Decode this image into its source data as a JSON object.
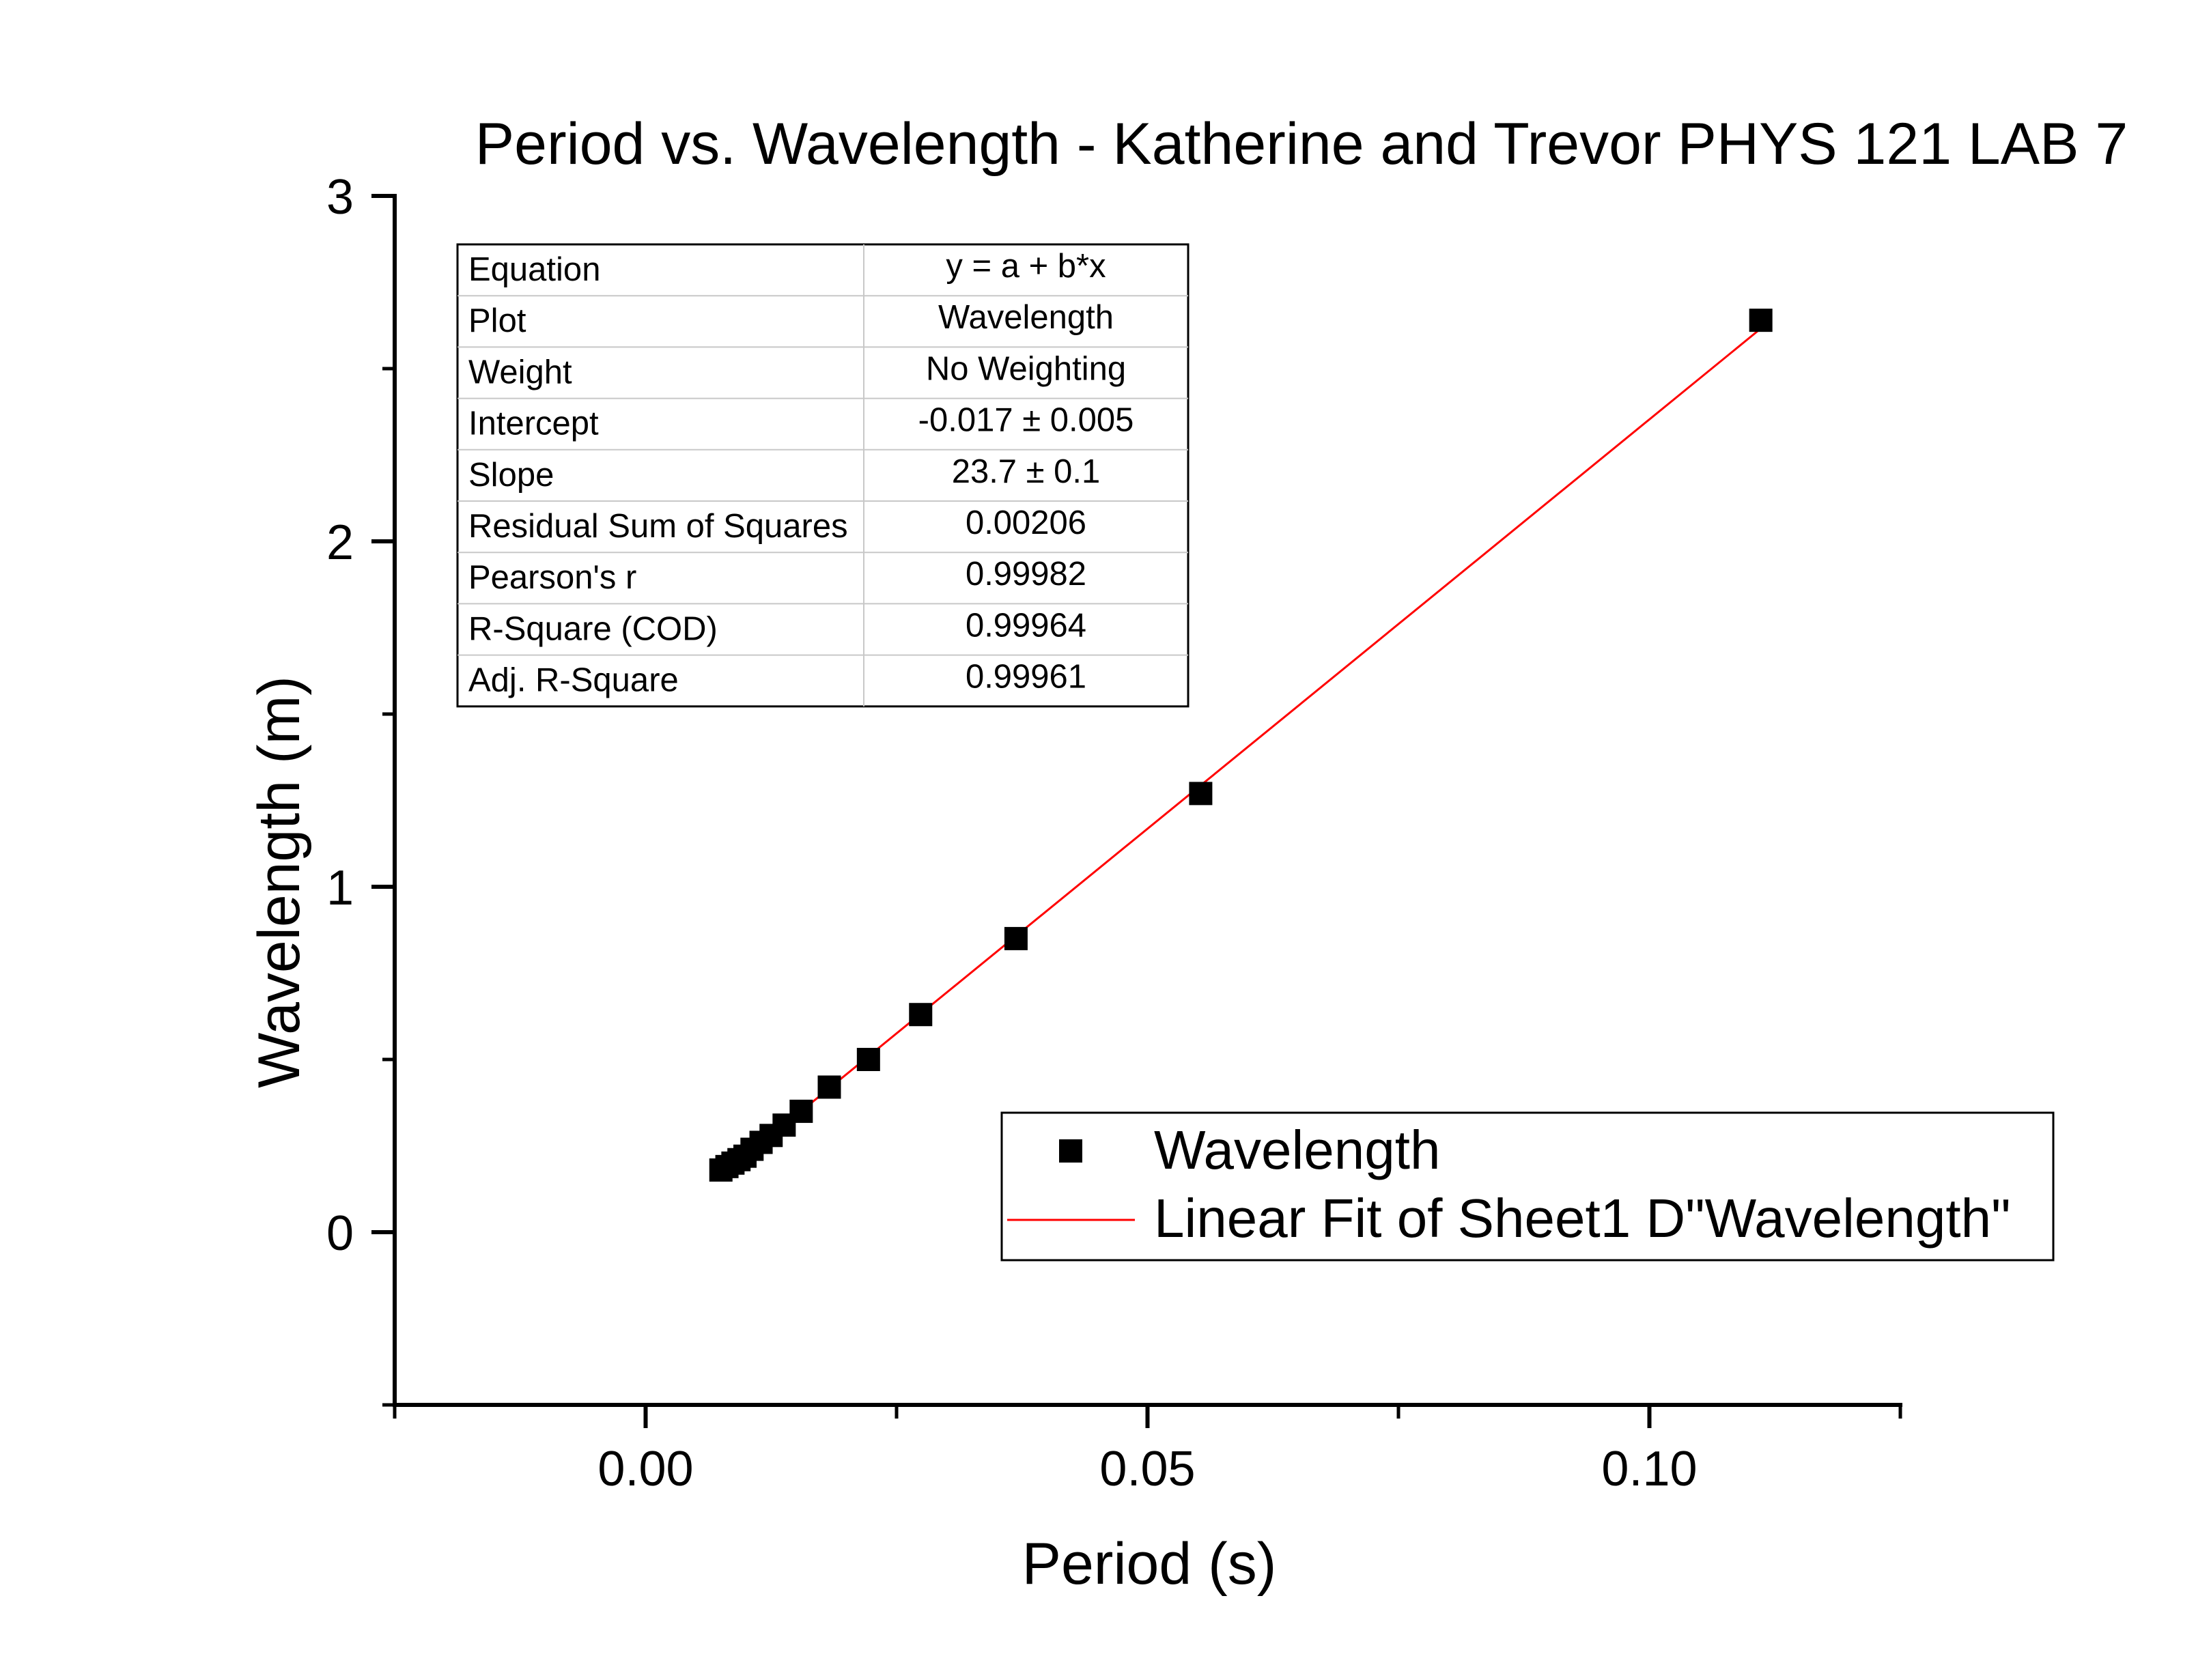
{
  "chart_data": {
    "type": "scatter",
    "title": "Period vs. Wavelength - Katherine and Trevor PHYS 121 LAB 7",
    "xlabel": "Period (s)",
    "ylabel": "Wavelength (m)",
    "xlim": [
      -0.025,
      0.125
    ],
    "ylim": [
      -0.5,
      3
    ],
    "x_ticks": [
      {
        "value": 0.0,
        "label": "0.00"
      },
      {
        "value": 0.05,
        "label": "0.05"
      },
      {
        "value": 0.1,
        "label": "0.10"
      }
    ],
    "x_minor_ticks": [
      -0.025,
      0.025,
      0.075,
      0.125
    ],
    "y_ticks": [
      {
        "value": 0,
        "label": "0"
      },
      {
        "value": 1,
        "label": "1"
      },
      {
        "value": 2,
        "label": "2"
      },
      {
        "value": 3,
        "label": "3"
      }
    ],
    "y_minor_ticks": [
      -0.5,
      0.5,
      1.5,
      2.5
    ],
    "grid": false,
    "series": [
      {
        "name": "Wavelength",
        "kind": "scatter",
        "marker": "square",
        "color": "#000000",
        "x": [
          0.0075,
          0.0081,
          0.0087,
          0.0093,
          0.0099,
          0.0106,
          0.0115,
          0.0125,
          0.0138,
          0.0155,
          0.0183,
          0.0222,
          0.0274,
          0.0369,
          0.0553,
          0.1111
        ],
        "y": [
          0.18,
          0.19,
          0.2,
          0.21,
          0.22,
          0.24,
          0.26,
          0.28,
          0.31,
          0.35,
          0.42,
          0.5,
          0.63,
          0.85,
          1.27,
          2.64
        ]
      },
      {
        "name": "Linear Fit of Sheet1 D\"Wavelength\"",
        "kind": "line",
        "color": "#ff0000",
        "intercept": -0.017,
        "slope": 23.7,
        "x_range": [
          0.0075,
          0.1111
        ]
      }
    ],
    "legend": {
      "position": "bottom-right",
      "entries": [
        "Wavelength",
        "Linear Fit of Sheet1 D\"Wavelength\""
      ]
    },
    "stats_table": {
      "position": "top-left",
      "rows": [
        [
          "Equation",
          "y = a + b*x"
        ],
        [
          "Plot",
          "Wavelength"
        ],
        [
          "Weight",
          "No Weighting"
        ],
        [
          "Intercept",
          "-0.017 ± 0.005"
        ],
        [
          "Slope",
          "23.7 ± 0.1"
        ],
        [
          "Residual Sum of Squares",
          "0.00206"
        ],
        [
          "Pearson's r",
          "0.99982"
        ],
        [
          "R-Square (COD)",
          "0.99964"
        ],
        [
          "Adj. R-Square",
          "0.99961"
        ]
      ]
    }
  }
}
